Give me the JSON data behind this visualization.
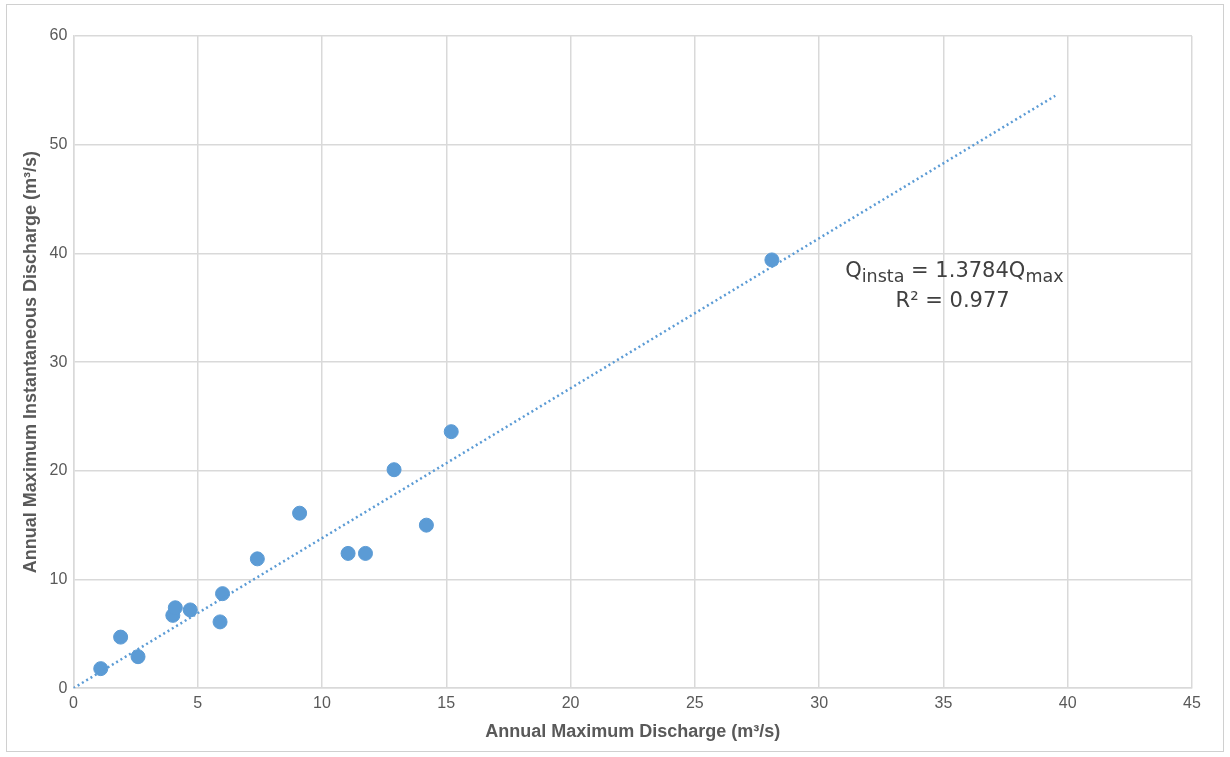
{
  "chart_data": {
    "type": "scatter",
    "xlabel": "Annual Maximum Discharge (m³/s)",
    "ylabel": "Annual Maximum Instantaneous Discharge (m³/s)",
    "xlim": [
      0,
      45
    ],
    "xticks": [
      0,
      5,
      10,
      15,
      20,
      25,
      30,
      35,
      40,
      45
    ],
    "ylim": [
      0,
      60
    ],
    "yticks": [
      0,
      10,
      20,
      30,
      40,
      50,
      60
    ],
    "grid": true,
    "legend": false,
    "marker": "circle",
    "series": [
      {
        "color": "#5b9bd5",
        "x": [
          1.1,
          1.9,
          2.6,
          4.0,
          4.1,
          4.7,
          5.9,
          6.0,
          7.4,
          9.1,
          11.05,
          11.75,
          12.9,
          14.2,
          15.2,
          28.1
        ],
        "values": [
          1.8,
          4.7,
          2.9,
          6.7,
          7.4,
          7.2,
          6.1,
          8.7,
          11.9,
          16.1,
          12.4,
          12.4,
          20.1,
          15.0,
          23.6,
          39.4
        ]
      },
      {
        "type": "line",
        "color": "#5b9bd5",
        "line_style": "dotted",
        "marker": "none",
        "x": [
          0,
          39.5
        ],
        "values": [
          0,
          54.5
        ]
      }
    ],
    "annotations": [
      "Q$_{insta}$ = 1.3784Q$_{max}$",
      "R² = 0.977"
    ]
  }
}
